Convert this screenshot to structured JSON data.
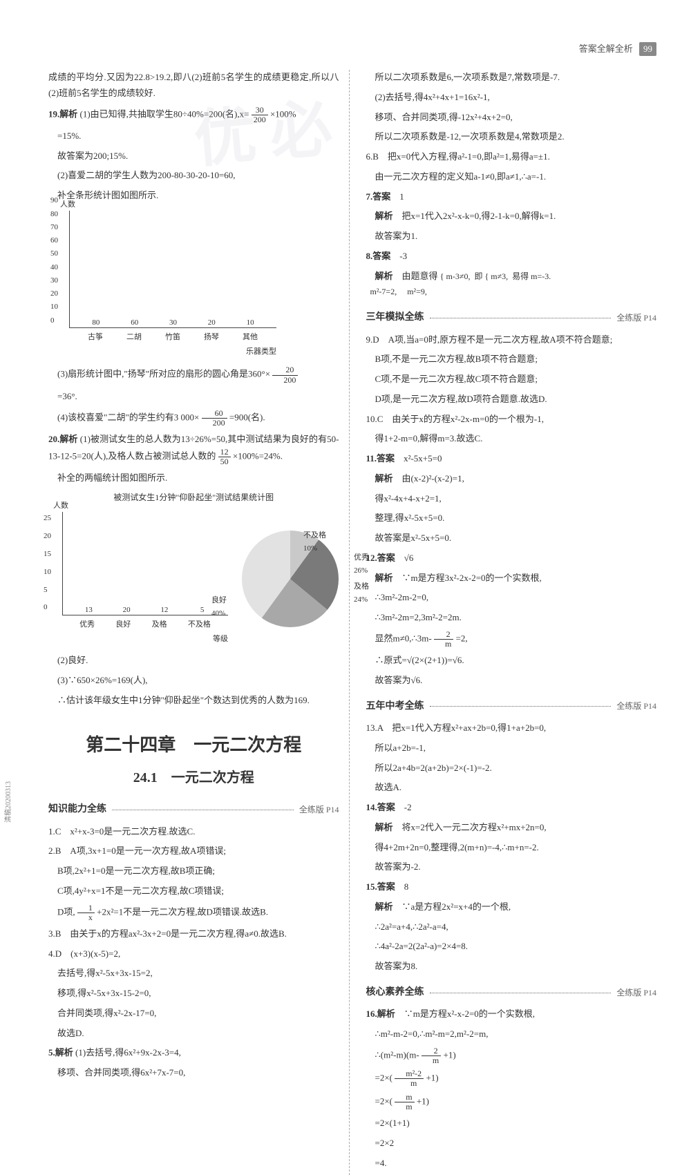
{
  "header": {
    "label": "答案全解全析",
    "page": "99"
  },
  "side_code": "清稿20200313",
  "left": {
    "p_intro": "成绩的平均分.又因为22.8>19.2,即八(2)班前5名学生的成绩更稳定,所以八(2)班前5名学生的成绩较好.",
    "q19_label": "19.解析",
    "q19_1": "(1)由已知得,共抽取学生80÷40%=200(名),x=",
    "q19_1b": "×100%",
    "q19_1c": "=15%.",
    "q19_1d": "故答案为200;15%.",
    "q19_2": "(2)喜爱二胡的学生人数为200-80-30-20-10=60,",
    "q19_2b": "补全条形统计图如图所示.",
    "chart1": {
      "type": "bar",
      "y_label": "人数",
      "categories": [
        "古筝",
        "二胡",
        "竹笛",
        "扬琴",
        "其他"
      ],
      "x_axis_label": "乐器类型",
      "values": [
        80,
        60,
        30,
        20,
        10
      ],
      "ymax": 90,
      "ystep": 10,
      "bar_color": "#888888"
    },
    "q19_3a": "(3)扇形统计图中,\"扬琴\"所对应的扇形的圆心角是360°×",
    "q19_3c": "=36°.",
    "q19_4a": "(4)该校喜爱\"二胡\"的学生约有3 000×",
    "q19_4c": "=900(名).",
    "q20_label": "20.解析",
    "q20_1": "(1)被测试女生的总人数为13÷26%=50,其中测试结果为良好的有50-13-12-5=20(人),及格人数占被测试总人数的",
    "q20_1c": "×100%=24%.",
    "q20_1d": "补全的两幅统计图如图所示.",
    "chart2_title": "被测试女生1分钟\"仰卧起坐\"测试结果统计图",
    "chart2": {
      "type": "bar",
      "y_label": "人数",
      "categories": [
        "优秀",
        "良好",
        "及格",
        "不及格"
      ],
      "x_axis_label": "等级",
      "values": [
        13,
        20,
        12,
        5
      ],
      "ymax": 25,
      "ystep": 5,
      "bar_color": "#888888"
    },
    "pie": {
      "type": "pie",
      "slices": [
        {
          "label": "不及格",
          "pct": "10%"
        },
        {
          "label": "优秀",
          "pct": "26%"
        },
        {
          "label": "及格",
          "pct": "24%"
        },
        {
          "label": "良好",
          "pct": "40%"
        }
      ]
    },
    "q20_2": "(2)良好.",
    "q20_3a": "(3)∵650×26%=169(人),",
    "q20_3b": "∴估计该年级女生中1分钟\"仰卧起坐\"个数达到优秀的人数为169.",
    "chapter": "第二十四章　一元二次方程",
    "section": "24.1　一元二次方程",
    "hdr1": {
      "title": "知识能力全练",
      "ref": "全练版 P14"
    },
    "q1": "1.C　x²+x-3=0是一元二次方程.故选C.",
    "q2a": "2.B　A项,3x+1=0是一元一次方程,故A项错误;",
    "q2b": "B项,2x²+1=0是一元二次方程,故B项正确;",
    "q2c": "C项,4y²+x=1不是一元二次方程,故C项错误;",
    "q2d_a": "D项,",
    "q2d_b": "+2x²=1不是一元二次方程,故D项错误.故选B.",
    "q3": "3.B　由关于x的方程ax²-3x+2=0是一元二次方程,得a≠0.故选B.",
    "q4a": "4.D　(x+3)(x-5)=2,",
    "q4b": "去括号,得x²-5x+3x-15=2,",
    "q4c": "移项,得x²-5x+3x-15-2=0,",
    "q4d": "合并同类项,得x²-2x-17=0,",
    "q4e": "故选D.",
    "q5_label": "5.解析",
    "q5a": "(1)去括号,得6x²+9x-2x-3=4,",
    "q5b": "移项、合并同类项,得6x²+7x-7=0,",
    "frac_30_200": {
      "n": "30",
      "d": "200"
    },
    "frac_20_200": {
      "n": "20",
      "d": "200"
    },
    "frac_60_200": {
      "n": "60",
      "d": "200"
    },
    "frac_12_50": {
      "n": "12",
      "d": "50"
    },
    "frac_1_x": {
      "n": "1",
      "d": "x"
    }
  },
  "right": {
    "q5c": "所以二次项系数是6,一次项系数是7,常数项是-7.",
    "q5d": "(2)去括号,得4x²+4x+1=16x²-1,",
    "q5e": "移项、合并同类项,得-12x²+4x+2=0,",
    "q5f": "所以二次项系数是-12,一次项系数是4,常数项是2.",
    "q6": "6.B　把x=0代入方程,得a²-1=0,即a²=1,易得a=±1.",
    "q6b": "由一元二次方程的定义知a-1≠0,即a≠1,∴a=-1.",
    "q7_label": "7.答案",
    "q7_ans": "1",
    "q7_exp_label": "解析",
    "q7_exp": "把x=1代入2x²-x-k=0,得2-1-k=0,解得k=1.",
    "q7_exp2": "故答案为1.",
    "q8_label": "8.答案",
    "q8_ans": "-3",
    "q8_exp_label": "解析",
    "q8_exp": "由题意得",
    "q8_cases": "{ m-3≠0,  即 { m≠3,  易得 m=-3.\n  m²-7=2,     m²=9,",
    "hdr2": {
      "title": "三年模拟全练",
      "ref": "全练版 P14"
    },
    "q9a": "9.D　A项,当a=0时,原方程不是一元二次方程,故A项不符合题意;",
    "q9b": "B项,不是一元二次方程,故B项不符合题意;",
    "q9c": "C项,不是一元二次方程,故C项不符合题意;",
    "q9d": "D项,是一元二次方程,故D项符合题意.故选D.",
    "q10": "10.C　由关于x的方程x²-2x-m=0的一个根为-1,",
    "q10b": "得1+2-m=0,解得m=3.故选C.",
    "q11_label": "11.答案",
    "q11_ans": "x²-5x+5=0",
    "q11_exp_label": "解析",
    "q11_exp1": "由(x-2)²-(x-2)=1,",
    "q11_exp2": "得x²-4x+4-x+2=1,",
    "q11_exp3": "整理,得x²-5x+5=0.",
    "q11_exp4": "故答案是x²-5x+5=0.",
    "q12_label": "12.答案",
    "q12_ans": "√6",
    "q12_exp_label": "解析",
    "q12_exp1": "∵m是方程3x²-2x-2=0的一个实数根,",
    "q12_exp2": "∴3m²-2m-2=0,",
    "q12_exp3": "∴3m²-2m=2,3m²-2=2m.",
    "q12_exp4a": "显然m≠0,∴3m-",
    "q12_exp4b": "=2,",
    "q12_exp5": "∴原式=√(2×(2+1))=√6.",
    "q12_exp6": "故答案为√6.",
    "frac_2_m": {
      "n": "2",
      "d": "m"
    },
    "hdr3": {
      "title": "五年中考全练",
      "ref": "全练版 P14"
    },
    "q13a": "13.A　把x=1代入方程x²+ax+2b=0,得1+a+2b=0,",
    "q13b": "所以a+2b=-1,",
    "q13c": "所以2a+4b=2(a+2b)=2×(-1)=-2.",
    "q13d": "故选A.",
    "q14_label": "14.答案",
    "q14_ans": "-2",
    "q14_exp_label": "解析",
    "q14_exp1": "将x=2代入一元二次方程x²+mx+2n=0,",
    "q14_exp2": "得4+2m+2n=0,整理得,2(m+n)=-4,∴m+n=-2.",
    "q14_exp3": "故答案为-2.",
    "q15_label": "15.答案",
    "q15_ans": "8",
    "q15_exp_label": "解析",
    "q15_exp1": "∵a是方程2x²=x+4的一个根,",
    "q15_exp2": "∴2a²=a+4,∴2a²-a=4,",
    "q15_exp3": "∴4a²-2a=2(2a²-a)=2×4=8.",
    "q15_exp4": "故答案为8.",
    "hdr4": {
      "title": "核心素养全练",
      "ref": "全练版 P14"
    },
    "q16_label": "16.解析",
    "q16_1": "∵m是方程x²-x-2=0的一个实数根,",
    "q16_2": "∴m²-m-2=0,∴m²-m=2,m²-2=m,",
    "q16_3a": "∴(m²-m)(m-",
    "q16_3b": "+1)",
    "q16_4a": "=2×(",
    "q16_4b": "+1)",
    "q16_5a": "=2×(",
    "q16_5b": "+1)",
    "q16_6": "=2×(1+1)",
    "q16_7": "=2×2",
    "q16_8": "=4.",
    "frac_m2_2_m": {
      "n": "m²-2",
      "d": "m"
    },
    "frac_m_m": {
      "n": "m",
      "d": "m"
    }
  }
}
